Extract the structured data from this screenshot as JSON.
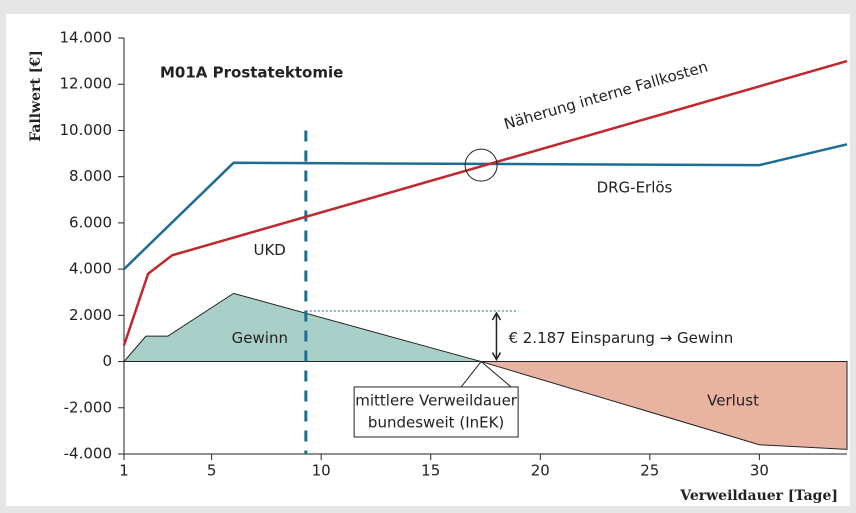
{
  "chart_data": {
    "type": "line",
    "title": "M01A Prostatektomie",
    "x_label": "Verweildauer [Tage]",
    "y_label": "Fallwert [€]",
    "xlim": [
      1,
      34
    ],
    "ylim": [
      -4000,
      14000
    ],
    "xticks": [
      1,
      5,
      10,
      15,
      20,
      25,
      30
    ],
    "yticks": [
      {
        "value": -4000,
        "label": "-4.000"
      },
      {
        "value": -2000,
        "label": "-2.000"
      },
      0,
      {
        "value": 2000,
        "label": "2.000"
      },
      {
        "value": 4000,
        "label": "4.000"
      },
      {
        "value": 6000,
        "label": "6.000"
      },
      {
        "value": 8000,
        "label": "8.000"
      },
      {
        "value": 10000,
        "label": "10.000"
      },
      {
        "value": 12000,
        "label": "12.000"
      },
      {
        "value": 14000,
        "label": "14.000"
      }
    ],
    "series": [
      {
        "name": "DRG-Erlös",
        "color": "#1c6e94",
        "x": [
          1,
          6,
          30,
          34
        ],
        "values": [
          4000,
          8600,
          8500,
          9400
        ]
      },
      {
        "name": "Näherung interne Fallkosten",
        "color": "#c0282e",
        "x": [
          1,
          2.1,
          3.2,
          34
        ],
        "values": [
          700,
          3800,
          4600,
          13000
        ]
      }
    ],
    "areas": [
      {
        "name": "Gewinn",
        "color": "#a9cfc9",
        "x": [
          1,
          2,
          3,
          6,
          17.3
        ],
        "values": [
          0,
          1100,
          1100,
          2950,
          0
        ]
      },
      {
        "name": "Verlust",
        "color": "#e8b3a1",
        "x": [
          17.3,
          34,
          34,
          30
        ],
        "values": [
          0,
          0,
          -3800,
          -3600
        ]
      }
    ],
    "markers": {
      "ukd": {
        "label": "UKD",
        "x": 9.3
      },
      "mean_los": {
        "label_lines": [
          "mittlere Verweildauer",
          "bundesweit (InEK)"
        ],
        "x": 17.3
      },
      "savings": {
        "label": "€ 2.187 Einsparung → Gewinn",
        "value": 2187
      }
    }
  }
}
